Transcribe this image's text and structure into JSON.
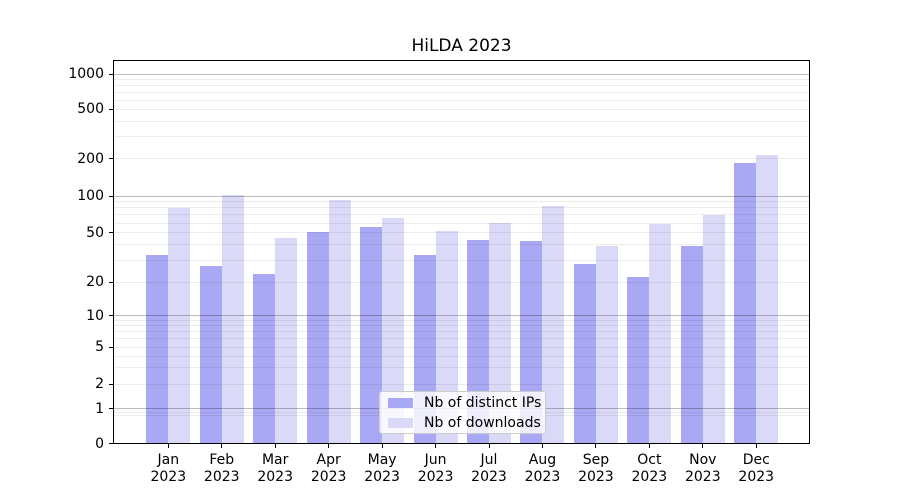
{
  "chart_data": {
    "type": "bar",
    "title": "HiLDA 2023",
    "categories": [
      "Jan 2023",
      "Feb 2023",
      "Mar 2023",
      "Apr 2023",
      "May 2023",
      "Jun 2023",
      "Jul 2023",
      "Aug 2023",
      "Sep 2023",
      "Oct 2023",
      "Nov 2023",
      "Dec 2023"
    ],
    "series": [
      {
        "name": "Nb of distinct IPs",
        "color": "#a8a8f5",
        "values": [
          33,
          27,
          23,
          51,
          56,
          33,
          44,
          43,
          28,
          22,
          39,
          185
        ]
      },
      {
        "name": "Nb of downloads",
        "color": "#dadaf8",
        "values": [
          79,
          102,
          45,
          92,
          66,
          52,
          60,
          83,
          39,
          59,
          70,
          215
        ]
      }
    ],
    "yscale": "symlog",
    "y_ticks": [
      0,
      1,
      2,
      5,
      10,
      20,
      50,
      100,
      200,
      500,
      1000
    ],
    "ylim": [
      0,
      1200
    ],
    "xlabel": "",
    "ylabel": "",
    "grid": "horizontal-both-major-and-minor",
    "legend_position": "lower center",
    "background_color": "#ffffff"
  }
}
